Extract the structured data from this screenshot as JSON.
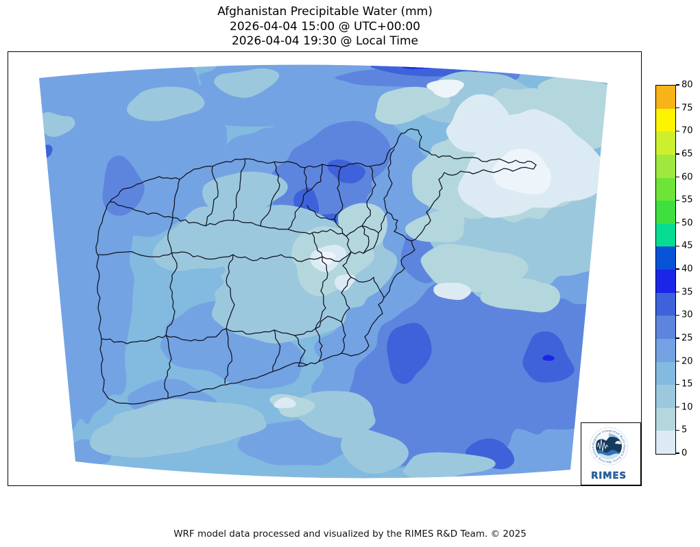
{
  "title": {
    "line1": "Afghanistan Precipitable Water (mm)",
    "line2": "2026-04-04 15:00 @ UTC+00:00",
    "line3": "2026-04-04 19:30 @ Local Time"
  },
  "footer": {
    "credit": "WRF model data processed and visualized by the RIMES R&D Team. © 2025"
  },
  "colorbar": {
    "unit": "mm",
    "min": 0,
    "max": 80,
    "tick_step": 5,
    "ticks": [
      0,
      5,
      10,
      15,
      20,
      25,
      30,
      35,
      40,
      45,
      50,
      55,
      60,
      65,
      70,
      75,
      80
    ],
    "segment_colors_low_to_high": [
      "#dcebf3",
      "#b4d7dd",
      "#9cc8de",
      "#83badf",
      "#74a3e3",
      "#5e85de",
      "#3e62d9",
      "#1b25e8",
      "#0852d8",
      "#06dd92",
      "#3fdf40",
      "#6ee437",
      "#9fe93e",
      "#cdf02e",
      "#fdf400",
      "#f7b318"
    ]
  },
  "map": {
    "region": "Afghanistan with province boundaries",
    "boundary_color": "#0c1220",
    "background": "#ffffff"
  },
  "logo": {
    "brand": "RIMES",
    "ring_text": "Regional Integrated Multi-Hazard Early Warning System"
  },
  "chart_data": {
    "type": "heatmap",
    "title": "Afghanistan Precipitable Water (mm)",
    "units": "mm",
    "legend_position": "right",
    "colorbar_range": [
      0,
      80
    ],
    "colorbar_ticks": [
      0,
      5,
      10,
      15,
      20,
      25,
      30,
      35,
      40,
      45,
      50,
      55,
      60,
      65,
      70,
      75,
      80
    ],
    "value_range_visible_on_map": [
      0,
      40
    ],
    "notes": "Filled contour map; highest values (30-40 mm) southeast and north-center, lowest (0-5 mm) northeast"
  }
}
